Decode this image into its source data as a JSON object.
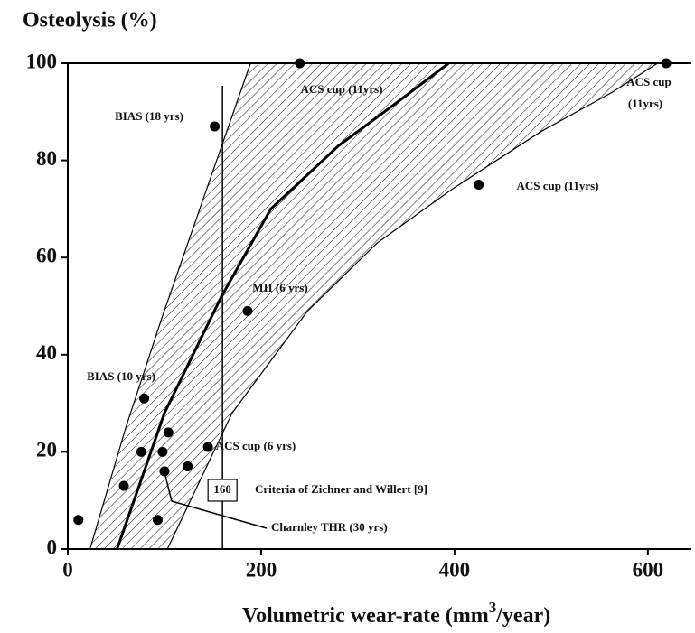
{
  "chart_data": {
    "type": "scatter",
    "title": "Osteolysis (%)",
    "xlabel": "Volumetric  wear-rate (mm",
    "xlabel_sup": "3",
    "xlabel_end": "/year)",
    "xlim": [
      0,
      645
    ],
    "ylim": [
      0,
      100
    ],
    "xticks": [
      0,
      200,
      400,
      600
    ],
    "yticks": [
      0,
      20,
      40,
      60,
      80,
      100
    ],
    "points": {
      "color": "#000",
      "x": [
        240,
        619,
        152,
        425,
        186,
        79,
        104,
        145,
        76,
        98,
        124,
        100,
        58,
        11,
        93
      ],
      "y": [
        100,
        100,
        87,
        75,
        49,
        31,
        24,
        21,
        20,
        20,
        17,
        16,
        13,
        6,
        6
      ]
    },
    "mean_curve": {
      "x": [
        51,
        100,
        159,
        210,
        280,
        341,
        394
      ],
      "y": [
        0,
        28,
        52,
        70,
        83,
        92,
        100
      ]
    },
    "band_upper": {
      "x": [
        23,
        60,
        98,
        154,
        189
      ],
      "y": [
        0,
        25,
        48,
        80,
        100
      ]
    },
    "band_lower": {
      "x": [
        103,
        170,
        248,
        320,
        397,
        490,
        563,
        610
      ],
      "y": [
        0,
        28,
        49,
        63,
        74,
        86,
        94,
        100
      ]
    },
    "marker_line": {
      "x": 160,
      "label": "160"
    },
    "annotations": [
      "ACS cup (11yrs)",
      "ACS cup",
      "(11yrs)",
      "BIAS (18 yrs)",
      "ACS cup (11yrs)",
      "MII (6 yrs)",
      "BIAS (10 yrs)",
      "ACS cup (6 yrs)",
      "Criteria of Zichner and Willert [9]",
      "Charnley THR (30 yrs)"
    ]
  }
}
